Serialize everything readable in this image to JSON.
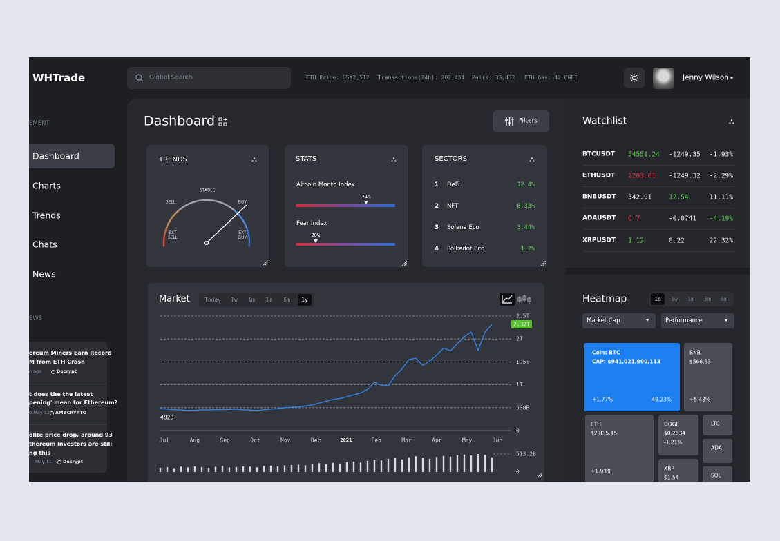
{
  "header": {
    "brand": "WHTrade",
    "search_placeholder": "Global Search",
    "ticker": [
      "ETH Price: US$2,512",
      "Transactions(24h): 202,434",
      "Pairs: 33,432",
      "ETH Gas: 42 GWEI"
    ],
    "user": "Jenny Wilson"
  },
  "sidebar": {
    "section": "EMENT",
    "nav": [
      "Dashboard",
      "Charts",
      "Trends",
      "Chats",
      "News"
    ],
    "news_heading": "EWS",
    "news": [
      {
        "lines": [
          "ereum Miners Earn Record",
          "M from ETH Crash"
        ],
        "date": "n ago",
        "source": "Decrypt"
      },
      {
        "lines": [
          "t does the the latest",
          "pening' mean for Ethereum?"
        ],
        "date": "0 May 12",
        "source": "AMBCRYPTO"
      },
      {
        "lines": [
          "olite price drop, around 93",
          "thereum investors are still",
          "ng this"
        ],
        "date": "May 11",
        "source": "Decrypt"
      }
    ]
  },
  "dashboard": {
    "title": "Dashboard",
    "filters": "Filters",
    "trends": {
      "title": "TRENDS",
      "labels": [
        "STABLE",
        "SELL",
        "BUY",
        "EXT SELL",
        "EXT BUY"
      ]
    },
    "stats": {
      "title": "STATS",
      "indices": [
        {
          "name": "Altcoin Month Index",
          "value": 71,
          "label": "71%"
        },
        {
          "name": "Fear Index",
          "value": 20,
          "label": "20%"
        }
      ]
    },
    "sectors": {
      "title": "SECTORS",
      "rows": [
        {
          "rank": 1,
          "name": "DeFi",
          "change": "12.4%"
        },
        {
          "rank": 2,
          "name": "NFT",
          "change": "8.33%"
        },
        {
          "rank": 3,
          "name": "Solana Eco",
          "change": "3.44%"
        },
        {
          "rank": 4,
          "name": "Polkadot Eco",
          "change": "1.2%"
        }
      ]
    },
    "market": {
      "title": "Market",
      "ranges": [
        "Today",
        "1w",
        "1m",
        "3m",
        "6m",
        "1y"
      ],
      "chart": {
        "type": "line",
        "color": "#2f80e6",
        "x_labels": [
          "Jul",
          "Aug",
          "Sep",
          "Oct",
          "Nov",
          "Dec",
          "2021",
          "Feb",
          "Mar",
          "Apr",
          "May",
          "Jun"
        ],
        "values": [
          482,
          470,
          455,
          450,
          440,
          445,
          455,
          450,
          460,
          458,
          462,
          470,
          455,
          450,
          440,
          455,
          470,
          480,
          500,
          510,
          520,
          535,
          560,
          600,
          640,
          680,
          700,
          740,
          780,
          820,
          900,
          1050,
          990,
          980,
          1200,
          1350,
          1550,
          1580,
          1420,
          1520,
          1650,
          1800,
          1740,
          1900,
          2050,
          2150,
          1750,
          2150,
          2320
        ],
        "value_labels": [
          "482B",
          null,
          null,
          null,
          null,
          null,
          null,
          null,
          null,
          null,
          null,
          null,
          null,
          null,
          null,
          null,
          null,
          null,
          null,
          null,
          null,
          null,
          null,
          null,
          null,
          null,
          null,
          null,
          null,
          null,
          null,
          null,
          null,
          null,
          null,
          null,
          null,
          null,
          null,
          null,
          null,
          null,
          null,
          null,
          null,
          null,
          null,
          null,
          "2.32T"
        ],
        "ylim": [
          0,
          2500
        ],
        "yticks": [
          0,
          {
            "value": 500,
            "label": "500B"
          },
          {
            "value": 1000,
            "label": "1T"
          },
          {
            "value": 1500,
            "label": "1.5T"
          },
          {
            "value": 2000,
            "label": "2T"
          },
          {
            "value": 2500,
            "label": "2.5T"
          }
        ],
        "volume": {
          "type": "bar",
          "color": "#d9dbe0",
          "values": [
            120,
            140,
            110,
            150,
            130,
            160,
            140,
            120,
            150,
            170,
            130,
            140,
            160,
            150,
            130,
            170,
            180,
            160,
            190,
            200,
            210,
            190,
            230,
            250,
            220,
            260,
            240,
            280,
            300,
            270,
            320,
            350,
            330,
            380,
            400,
            360,
            420,
            450,
            410,
            380,
            430,
            460,
            440,
            480,
            500,
            470,
            513.2,
            490,
            420
          ],
          "ylim": [
            0,
            513.2
          ],
          "yticks": [
            0,
            {
              "value": 513.2,
              "label": "513.2B"
            }
          ]
        }
      }
    }
  },
  "watchlist": {
    "title": "Watchlist",
    "rows": [
      {
        "symbol": "BTCUSDT",
        "price": "54551.24",
        "change": "-1249.35",
        "percent": "-1.93%",
        "colors": [
          "#5fcf4f",
          "#e6e8ee",
          "#e6e8ee"
        ]
      },
      {
        "symbol": "ETHUSDT",
        "price": "2283.01",
        "change": "-1249.32",
        "percent": "-2.29%",
        "colors": [
          "#e0393e",
          "#e6e8ee",
          "#e6e8ee"
        ]
      },
      {
        "symbol": "BNBUSDT",
        "price": "542.91",
        "change": "12.54",
        "percent": "11.11%",
        "colors": [
          "#e6e8ee",
          "#5fcf4f",
          "#e6e8ee"
        ]
      },
      {
        "symbol": "ADAUSDT",
        "price": "0.7",
        "change": "-0.0741",
        "percent": "-4.19%",
        "colors": [
          "#e0393e",
          "#e6e8ee",
          "#5fcf4f"
        ]
      },
      {
        "symbol": "XRPUSDT",
        "price": "1.12",
        "change": "0.22",
        "percent": "22.32%",
        "colors": [
          "#5fcf4f",
          "#e6e8ee",
          "#e6e8ee"
        ]
      }
    ]
  },
  "heatmap": {
    "title": "Heatmap",
    "ranges": [
      "1d",
      "1w",
      "1m",
      "3m",
      "6m"
    ],
    "filters": [
      "Market Cap",
      "Performance"
    ],
    "tiles": [
      {
        "lines": [
          "Coin: BTC",
          "CAP: $941,021,990,113"
        ],
        "foot": [
          "+1.77%",
          "49.23%"
        ],
        "color": "#1b7ff0"
      },
      {
        "lines": [
          "BNB",
          "$566.53"
        ],
        "foot": [
          "+5.43%"
        ],
        "color": "#4a4d55"
      },
      {
        "lines": [
          "ETH",
          "$2,835.45"
        ],
        "foot": [
          "+1.93%"
        ],
        "color": "#4a4d55"
      },
      {
        "lines": [
          "DOGE",
          "$0.2634",
          "-1.21%"
        ],
        "color": "#4a4d55"
      },
      {
        "lines": [
          "XRP",
          "$1.54"
        ],
        "color": "#4a4d55"
      },
      {
        "lines": [
          "LTC"
        ],
        "color": "#4a4d55"
      },
      {
        "lines": [
          "ADA"
        ],
        "color": "#4a4d55"
      },
      {
        "lines": [
          "SOL"
        ],
        "color": "#4a4d55"
      }
    ]
  }
}
